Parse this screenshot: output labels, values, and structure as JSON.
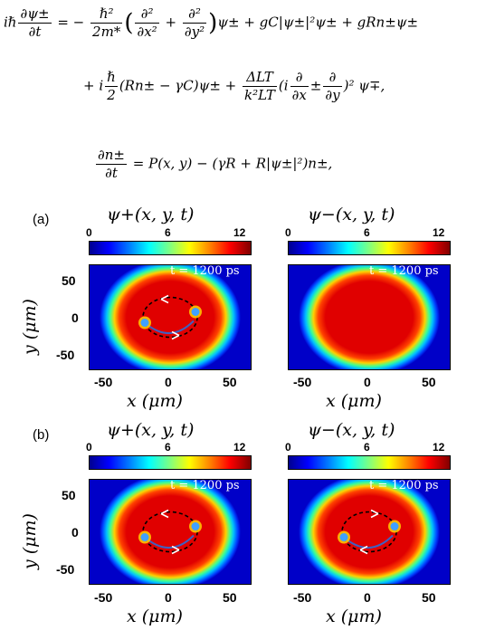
{
  "equations": {
    "eq1_line1": {
      "lhs_num": "∂ψ±",
      "lhs_den": "∂t",
      "lhs_prefix": "iℏ",
      "eq_sign": "= −",
      "f1_num": "ℏ²",
      "f1_den": "2m*",
      "f2_num": "∂²",
      "f2_den": "∂x²",
      "plus": "+",
      "f3_num": "∂²",
      "f3_den": "∂y²",
      "rest": "ψ± + gC|ψ±|²ψ± + gRn±ψ±"
    },
    "eq1_line2": {
      "start": "+ i",
      "f1_num": "ℏ",
      "f1_den": "2",
      "mid": "(Rn± − γC)ψ± +",
      "f2_num": "ΔLT",
      "f2_den": "k²LT",
      "open": "(i",
      "f3_num": "∂",
      "f3_den": "∂x",
      "pm": "±",
      "f4_num": "∂",
      "f4_den": "∂y",
      "close": ")² ψ∓,"
    },
    "eq2": {
      "lhs_num": "∂n±",
      "lhs_den": "∂t",
      "rhs": "= P(x, y) − (γR + R|ψ±|²)n±,"
    }
  },
  "panels": {
    "a": {
      "label": "(a)",
      "plots": [
        {
          "title": "ψ+(x, y, t)",
          "time_label": "t = 1200 ps",
          "vortices": true,
          "arrow_dir": "ccw"
        },
        {
          "title": "ψ−(x, y, t)",
          "time_label": "t = 1200 ps",
          "vortices": false
        }
      ]
    },
    "b": {
      "label": "(b)",
      "plots": [
        {
          "title": "ψ+(x, y, t)",
          "time_label": "t = 1200 ps",
          "vortices": true,
          "arrow_dir": "ccw"
        },
        {
          "title": "ψ−(x, y, t)",
          "time_label": "t = 1200 ps",
          "vortices": true,
          "arrow_dir": "cw"
        }
      ]
    }
  },
  "colorbar": {
    "ticks": [
      "0",
      "6",
      "12"
    ]
  },
  "axes": {
    "x_ticks": [
      "-50",
      "0",
      "50"
    ],
    "y_ticks": [
      "50",
      "0",
      "-50"
    ],
    "xlabel": "x (μm)",
    "ylabel": "y (μm)"
  },
  "colors": {
    "bg_blue": "#0000c8",
    "ring_red": "#e00000",
    "vortex_cyan": "#40a0ff",
    "trajectory": "#4060c0"
  }
}
